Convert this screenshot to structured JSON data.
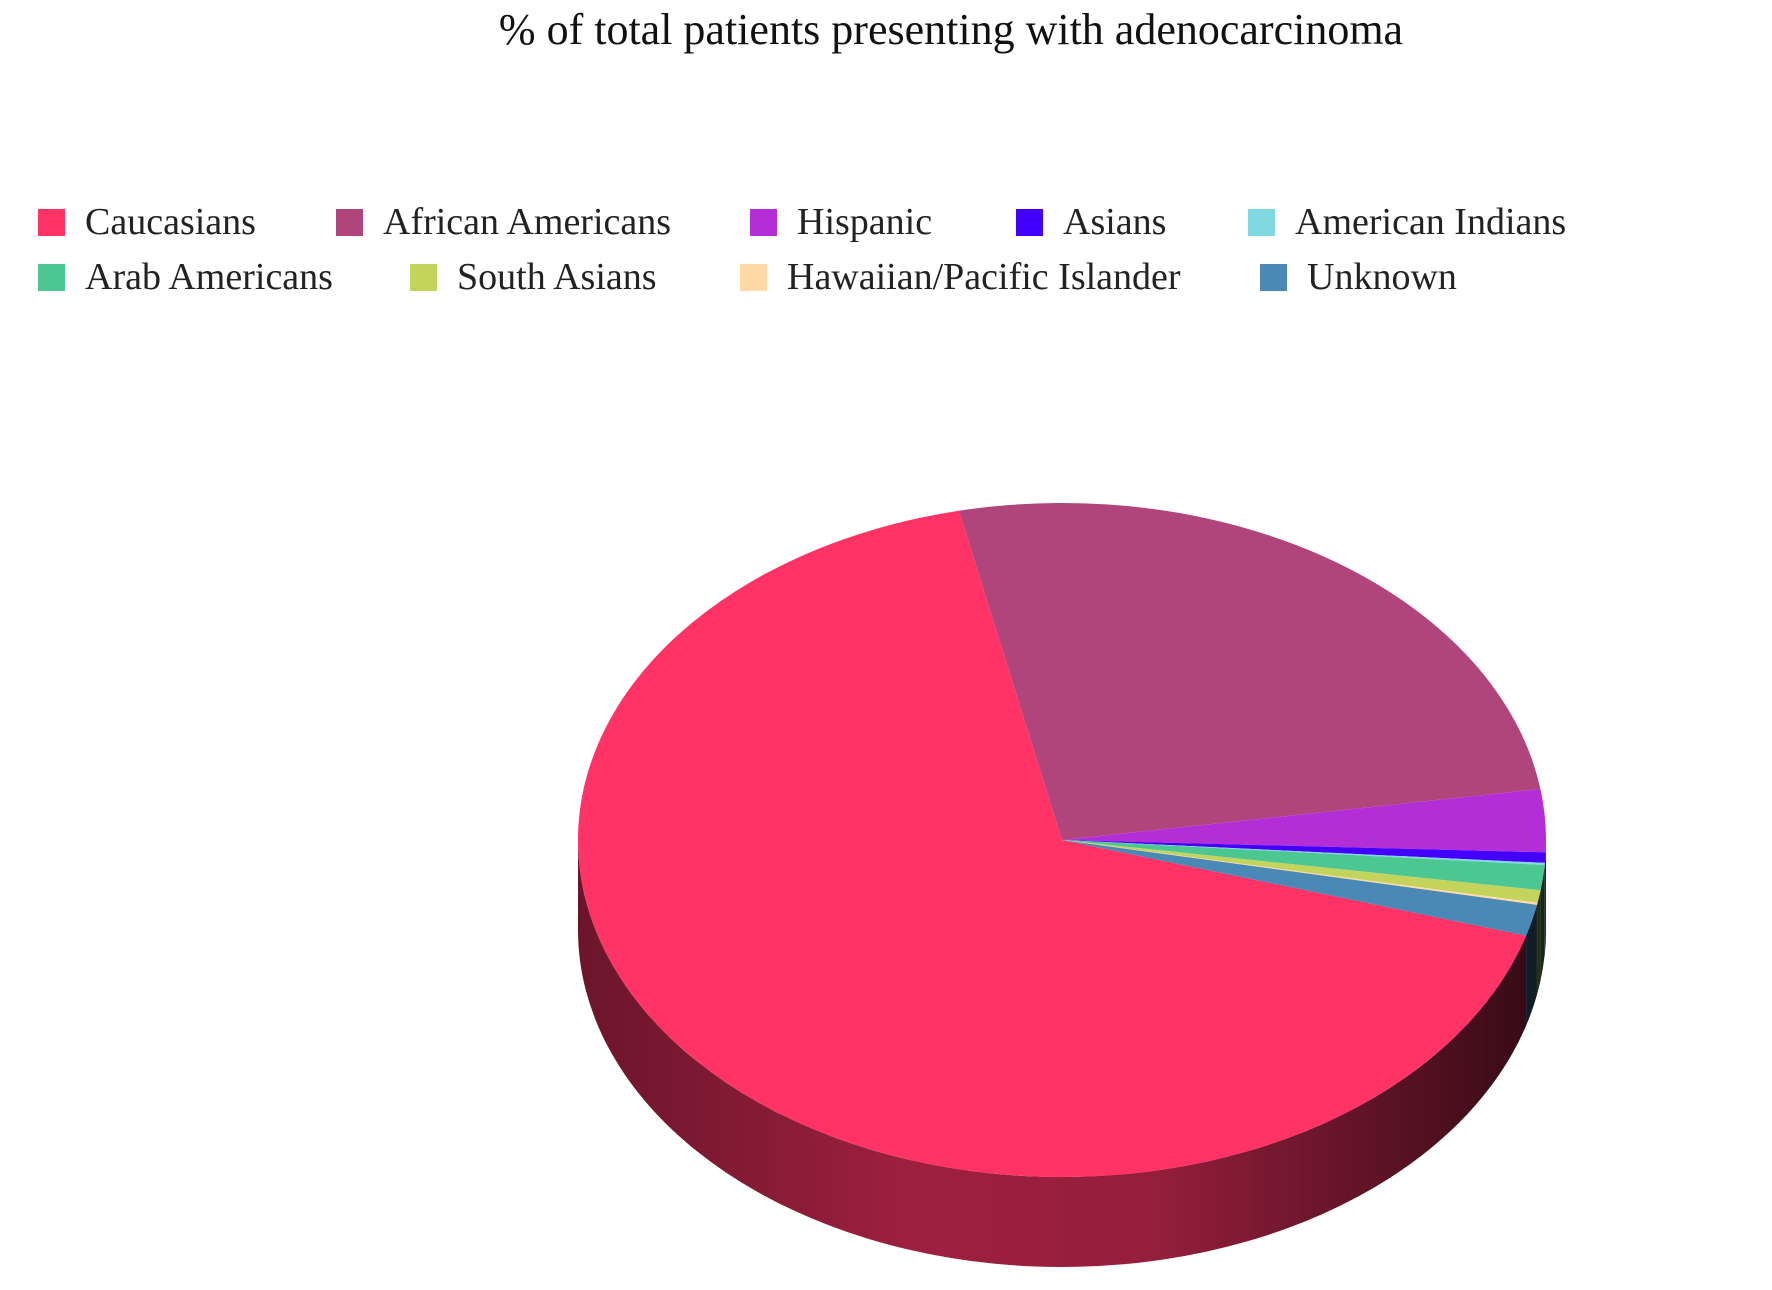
{
  "chart_data": {
    "type": "pie",
    "title": "% of total patients presenting with adenocarcinoma",
    "legend_position": "top",
    "slices": [
      {
        "label": "Caucasians",
        "value": 67.0,
        "color": "#ff3366"
      },
      {
        "label": "African Americans",
        "value": 26.0,
        "color": "#b0457c"
      },
      {
        "label": "Hispanic",
        "value": 3.0,
        "color": "#b32ed6"
      },
      {
        "label": "Asians",
        "value": 0.5,
        "color": "#4400ff"
      },
      {
        "label": "American Indians",
        "value": 0.1,
        "color": "#80d9e0"
      },
      {
        "label": "Arab Americans",
        "value": 1.2,
        "color": "#4cc791"
      },
      {
        "label": "South Asians",
        "value": 0.6,
        "color": "#c2d45c"
      },
      {
        "label": "Hawaiian/Pacific Islander",
        "value": 0.1,
        "color": "#ffd9a6"
      },
      {
        "label": "Unknown",
        "value": 1.5,
        "color": "#4a88b5"
      }
    ]
  }
}
